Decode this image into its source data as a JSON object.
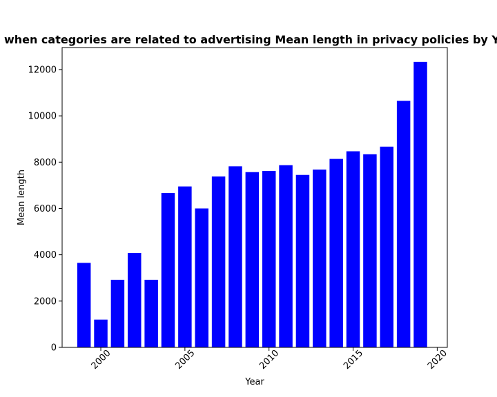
{
  "chart_data": {
    "type": "bar",
    "title": "when categories are related to advertising Mean length in privacy policies by Year",
    "xlabel": "Year",
    "ylabel": "Mean length",
    "x": [
      1999,
      2000,
      2001,
      2002,
      2003,
      2004,
      2005,
      2006,
      2007,
      2008,
      2009,
      2010,
      2011,
      2012,
      2013,
      2014,
      2015,
      2016,
      2017,
      2018,
      2019
    ],
    "values": [
      3650,
      1200,
      2920,
      4080,
      2920,
      6670,
      6950,
      6000,
      7380,
      7820,
      7570,
      7620,
      7870,
      7450,
      7680,
      8140,
      8470,
      8340,
      8670,
      10650,
      12330
    ],
    "xlim": [
      1997.7,
      2020.6
    ],
    "ylim": [
      0,
      12950
    ],
    "xticks": [
      2000,
      2005,
      2010,
      2015,
      2020
    ],
    "xtick_labels": [
      "2000",
      "2005",
      "2010",
      "2015",
      "2020"
    ],
    "xtick_rotation": 45,
    "yticks": [
      0,
      2000,
      4000,
      6000,
      8000,
      10000,
      12000
    ],
    "ytick_labels": [
      "0",
      "2000",
      "4000",
      "6000",
      "8000",
      "10000",
      "12000"
    ],
    "bar_color": "#0000ff",
    "grid": false,
    "legend": "none"
  }
}
